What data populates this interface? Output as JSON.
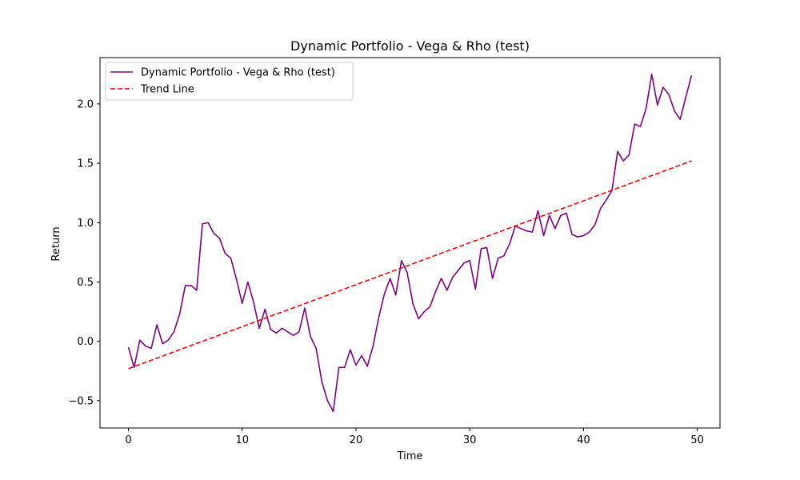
{
  "chart_data": {
    "type": "line",
    "title": "Dynamic Portfolio - Vega & Rho (test)",
    "xlabel": "Time",
    "ylabel": "Return",
    "xlim": [
      -2.5,
      52.0
    ],
    "ylim": [
      -0.73,
      2.39
    ],
    "xticks": [
      0,
      10,
      20,
      30,
      40,
      50
    ],
    "xtick_labels": [
      "0",
      "10",
      "20",
      "30",
      "40",
      "50"
    ],
    "yticks": [
      -0.5,
      0.0,
      0.5,
      1.0,
      1.5,
      2.0
    ],
    "ytick_labels": [
      "−0.5",
      "0.0",
      "0.5",
      "1.0",
      "1.5",
      "2.0"
    ],
    "grid": false,
    "legend_position": "upper left",
    "series": [
      {
        "name": "Dynamic Portfolio - Vega & Rho (test)",
        "color": "#800080",
        "linestyle": "solid",
        "x": [
          0,
          0.5,
          1,
          1.5,
          2,
          2.5,
          3,
          3.5,
          4,
          4.5,
          5,
          5.5,
          6,
          6.5,
          7,
          7.5,
          8,
          8.5,
          9,
          9.5,
          10,
          10.5,
          11,
          11.5,
          12,
          12.5,
          13,
          13.5,
          14,
          14.5,
          15,
          15.5,
          16,
          16.5,
          17,
          17.5,
          18,
          18.5,
          19,
          19.5,
          20,
          20.5,
          21,
          21.5,
          22,
          22.5,
          23,
          23.5,
          24,
          24.5,
          25,
          25.5,
          26,
          26.5,
          27,
          27.5,
          28,
          28.5,
          29,
          29.5,
          30,
          30.5,
          31,
          31.5,
          32,
          32.5,
          33,
          33.5,
          34,
          34.5,
          35,
          35.5,
          36,
          36.5,
          37,
          37.5,
          38,
          38.5,
          39,
          39.5,
          40,
          40.5,
          41,
          41.5,
          42,
          42.5,
          43,
          43.5,
          44,
          44.5,
          45,
          45.5,
          46,
          46.5,
          47,
          47.5,
          48,
          48.5,
          49,
          49.5
        ],
        "y": [
          -0.05,
          -0.22,
          0.01,
          -0.04,
          -0.06,
          0.14,
          -0.02,
          0.01,
          0.08,
          0.23,
          0.47,
          0.47,
          0.43,
          0.99,
          1.0,
          0.91,
          0.87,
          0.74,
          0.7,
          0.52,
          0.32,
          0.5,
          0.33,
          0.11,
          0.27,
          0.1,
          0.07,
          0.11,
          0.08,
          0.05,
          0.08,
          0.28,
          0.04,
          -0.06,
          -0.34,
          -0.5,
          -0.59,
          -0.22,
          -0.22,
          -0.07,
          -0.2,
          -0.12,
          -0.21,
          -0.04,
          0.2,
          0.4,
          0.53,
          0.39,
          0.68,
          0.58,
          0.32,
          0.19,
          0.25,
          0.29,
          0.42,
          0.53,
          0.43,
          0.54,
          0.6,
          0.66,
          0.68,
          0.44,
          0.78,
          0.79,
          0.53,
          0.7,
          0.72,
          0.82,
          0.97,
          0.95,
          0.93,
          0.92,
          1.1,
          0.89,
          1.06,
          0.95,
          1.06,
          1.08,
          0.9,
          0.88,
          0.89,
          0.92,
          0.98,
          1.12,
          1.19,
          1.27,
          1.6,
          1.52,
          1.57,
          1.83,
          1.81,
          1.96,
          2.25,
          1.99,
          2.14,
          2.08,
          1.94,
          1.87,
          2.06,
          2.24
        ]
      },
      {
        "name": "Trend Line",
        "color": "#ff0000",
        "linestyle": "dashed",
        "x": [
          0,
          49.5
        ],
        "y": [
          -0.23,
          1.52
        ]
      }
    ]
  }
}
